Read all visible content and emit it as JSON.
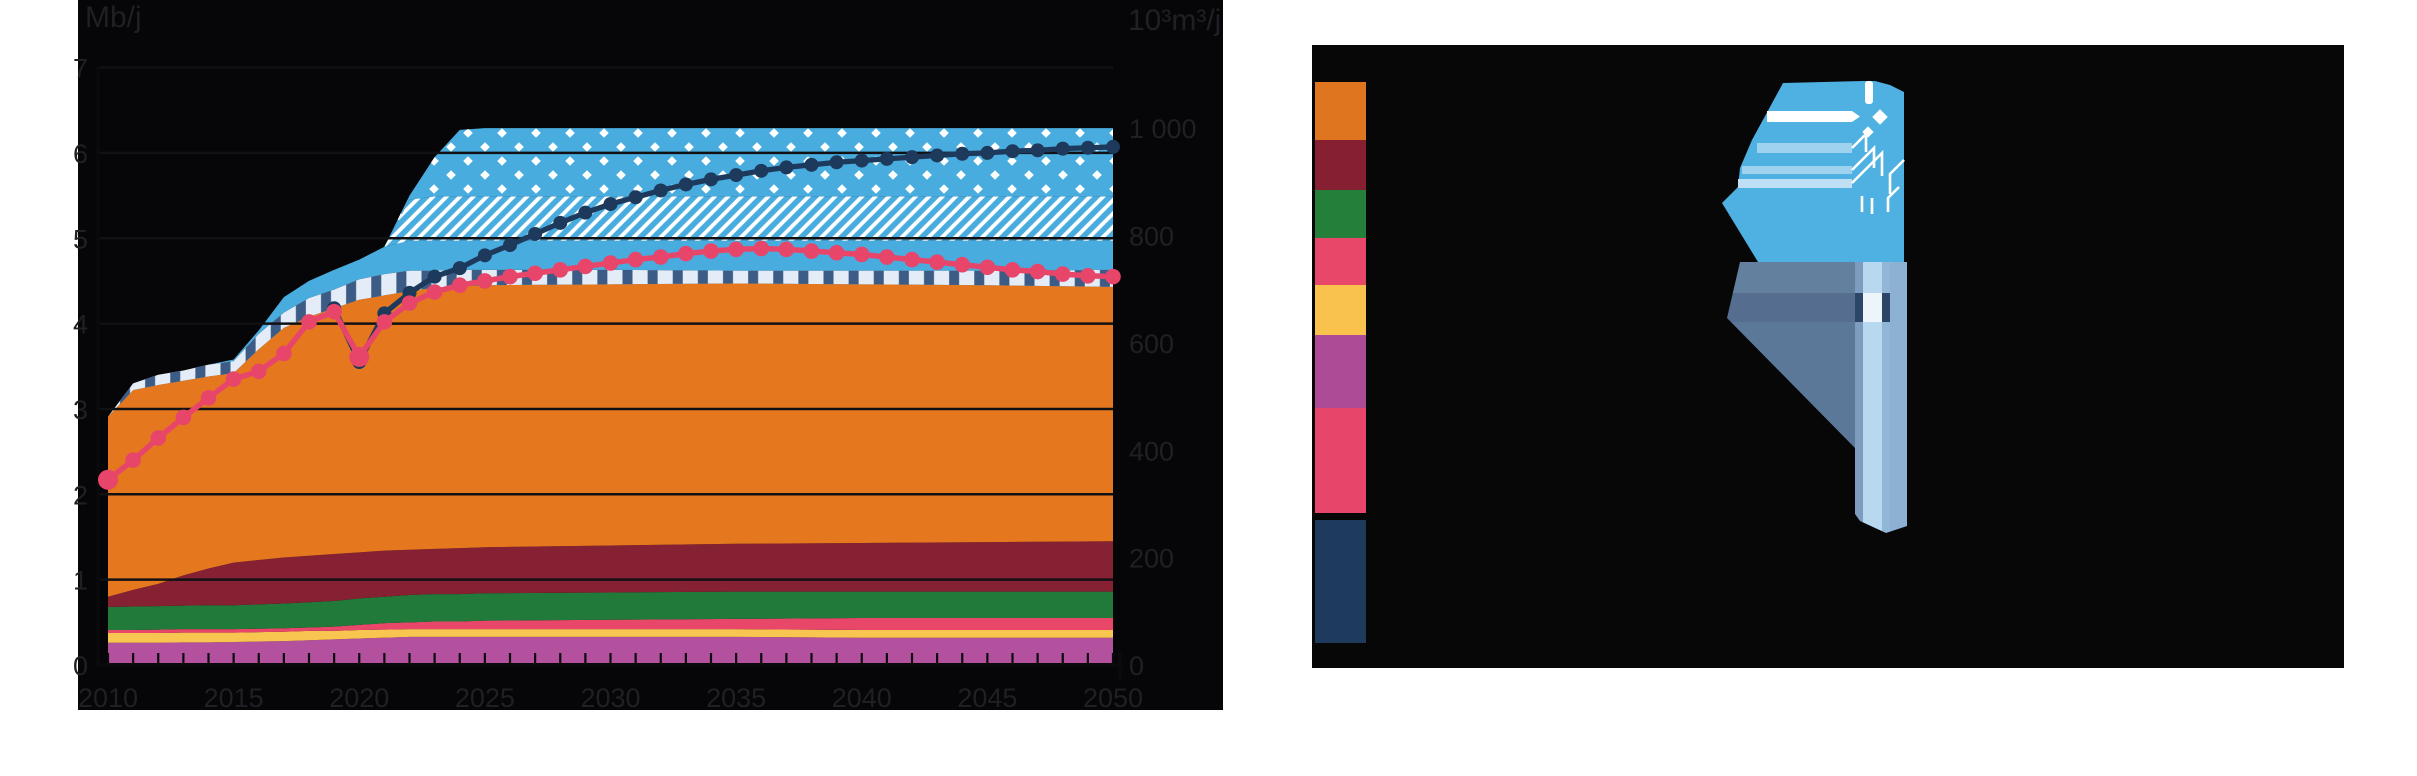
{
  "page": {
    "background": "#ffffff"
  },
  "left_chart": {
    "axis_left_title": "Mb/j",
    "axis_right_title": "10³m³/j",
    "left_tick_labels": [
      "0",
      "1",
      "2",
      "3",
      "4",
      "5",
      "6",
      "7"
    ],
    "right_ticks": [
      {
        "label": "1 000",
        "value": 1000
      },
      {
        "label": "800",
        "value": 800
      },
      {
        "label": "600",
        "value": 600
      },
      {
        "label": "400",
        "value": 400
      },
      {
        "label": "200",
        "value": 200
      },
      {
        "label": "0",
        "value": 0
      }
    ],
    "year_labels": [
      "2010",
      "2015",
      "2020",
      "2025",
      "2030",
      "2035",
      "2040",
      "2045",
      "2050"
    ]
  },
  "chart_data": {
    "type": "area",
    "title": "",
    "xlabel": "",
    "ylabel_left": "Mb/j",
    "ylabel_right": "10³m³/j",
    "x_range": [
      2010,
      2050
    ],
    "ylim_left": [
      0,
      7
    ],
    "ylim_right": [
      0,
      1113
    ],
    "grid": true,
    "checkpoint_years": [
      2010,
      2011,
      2012,
      2013,
      2014,
      2015,
      2016,
      2017,
      2018,
      2019,
      2020,
      2021,
      2022,
      2023,
      2024,
      2025,
      2030,
      2035,
      2040,
      2045,
      2050
    ],
    "stacked_series": [
      {
        "name": "band-magenta",
        "color_key": "magenta",
        "pattern": null,
        "top": [
          0.26,
          0.26,
          0.26,
          0.265,
          0.265,
          0.27,
          0.275,
          0.28,
          0.29,
          0.3,
          0.31,
          0.32,
          0.33,
          0.33,
          0.33,
          0.33,
          0.33,
          0.33,
          0.32,
          0.32,
          0.32
        ]
      },
      {
        "name": "band-yellow",
        "color_key": "yellow",
        "pattern": null,
        "top": [
          0.375,
          0.375,
          0.375,
          0.38,
          0.38,
          0.38,
          0.385,
          0.39,
          0.4,
          0.4,
          0.41,
          0.415,
          0.42,
          0.42,
          0.42,
          0.42,
          0.42,
          0.42,
          0.41,
          0.41,
          0.41
        ]
      },
      {
        "name": "band-pink",
        "color_key": "pink_band",
        "pattern": null,
        "top": [
          0.41,
          0.41,
          0.415,
          0.42,
          0.42,
          0.42,
          0.425,
          0.43,
          0.44,
          0.45,
          0.47,
          0.49,
          0.5,
          0.51,
          0.51,
          0.52,
          0.53,
          0.54,
          0.55,
          0.55,
          0.55
        ]
      },
      {
        "name": "band-green",
        "color_key": "green",
        "pattern": null,
        "top": [
          0.68,
          0.685,
          0.69,
          0.695,
          0.7,
          0.7,
          0.71,
          0.72,
          0.735,
          0.75,
          0.78,
          0.8,
          0.82,
          0.83,
          0.83,
          0.84,
          0.85,
          0.86,
          0.86,
          0.86,
          0.86
        ]
      },
      {
        "name": "band-maroon",
        "color_key": "maroon",
        "pattern": null,
        "top": [
          0.8,
          0.88,
          0.95,
          1.05,
          1.13,
          1.2,
          1.23,
          1.26,
          1.28,
          1.3,
          1.32,
          1.34,
          1.35,
          1.36,
          1.37,
          1.38,
          1.4,
          1.42,
          1.43,
          1.44,
          1.45
        ]
      },
      {
        "name": "band-orange",
        "color_key": "orange",
        "pattern": null,
        "top": [
          2.91,
          3.22,
          3.28,
          3.33,
          3.38,
          3.42,
          3.7,
          3.95,
          4.08,
          4.18,
          4.28,
          4.33,
          4.38,
          4.42,
          4.44,
          4.45,
          4.46,
          4.47,
          4.46,
          4.45,
          4.43
        ]
      },
      {
        "name": "band-striped",
        "color_key": "stripe_bg",
        "pattern": "stripes",
        "top": [
          2.91,
          3.3,
          3.4,
          3.45,
          3.52,
          3.56,
          3.88,
          4.13,
          4.3,
          4.4,
          4.52,
          4.58,
          4.62,
          4.62,
          4.63,
          4.63,
          4.63,
          4.62,
          4.62,
          4.62,
          4.63
        ]
      },
      {
        "name": "band-blue-solid",
        "color_key": "blue",
        "pattern": null,
        "top": [
          2.91,
          3.3,
          3.4,
          3.45,
          3.52,
          3.58,
          3.92,
          4.31,
          4.5,
          4.63,
          4.75,
          4.9,
          4.97,
          4.97,
          4.97,
          4.97,
          4.97,
          4.97,
          4.97,
          4.97,
          4.97
        ]
      },
      {
        "name": "band-blue-hatched",
        "color_key": "blue",
        "pattern": "hatch",
        "top": [
          2.91,
          3.3,
          3.4,
          3.45,
          3.52,
          3.58,
          3.92,
          4.31,
          4.5,
          4.63,
          4.75,
          4.9,
          5.45,
          5.49,
          5.49,
          5.49,
          5.49,
          5.49,
          5.49,
          5.49,
          5.49
        ]
      },
      {
        "name": "band-blue-dotted",
        "color_key": "blue",
        "pattern": "dots",
        "top": [
          2.91,
          3.3,
          3.4,
          3.45,
          3.52,
          3.58,
          3.92,
          4.31,
          4.5,
          4.63,
          4.75,
          4.9,
          5.5,
          5.95,
          6.27,
          6.29,
          6.29,
          6.29,
          6.29,
          6.29,
          6.29
        ]
      }
    ],
    "lines": [
      {
        "name": "supply-line",
        "color_key": "navy_line",
        "start_year": 2019,
        "values": [
          4.18,
          3.55,
          4.12,
          4.36,
          4.55,
          4.65,
          4.8,
          4.92,
          5.05,
          5.18,
          5.3,
          5.4,
          5.48,
          5.56,
          5.63,
          5.69,
          5.74,
          5.79,
          5.83,
          5.86,
          5.89,
          5.91,
          5.93,
          5.95,
          5.97,
          5.99,
          6.0,
          6.02,
          6.03,
          6.05,
          6.06,
          6.07
        ]
      },
      {
        "name": "demand-line",
        "color_key": "pink_line",
        "start_year": 2010,
        "values": [
          2.17,
          2.4,
          2.66,
          2.9,
          3.13,
          3.35,
          3.44,
          3.65,
          4.02,
          4.14,
          3.61,
          4.02,
          4.24,
          4.37,
          4.45,
          4.5,
          4.55,
          4.59,
          4.63,
          4.67,
          4.71,
          4.75,
          4.78,
          4.82,
          4.85,
          4.87,
          4.88,
          4.87,
          4.85,
          4.83,
          4.81,
          4.78,
          4.75,
          4.72,
          4.69,
          4.66,
          4.63,
          4.61,
          4.58,
          4.56,
          4.55
        ]
      }
    ]
  },
  "colors": {
    "chart_bg": "#060608",
    "axis_text": "#202024",
    "gridline": "#111114",
    "axis_line": "#0a0a0c",
    "magenta": "#b3519e",
    "yellow": "#f9c551",
    "pink_band": "#e8476a",
    "green": "#227a3a",
    "maroon": "#862033",
    "orange": "#e5781f",
    "stripe_bg": "#e4edf7",
    "stripe_fg": "#3c5c85",
    "blue": "#49acdf",
    "pattern_white": "#ffffff",
    "navy_line": "#1d3a5c",
    "pink_line": "#e8456b"
  },
  "right_panel": {
    "background": "#070708",
    "legend_chips": [
      {
        "name": "legend-chip-orange",
        "color": "#e0751f"
      },
      {
        "name": "legend-chip-maroon",
        "color": "#871f33"
      },
      {
        "name": "legend-chip-green",
        "color": "#237f39"
      },
      {
        "name": "legend-chip-pink",
        "color": "#e8476a"
      },
      {
        "name": "legend-chip-yellow",
        "color": "#f9c24c"
      },
      {
        "name": "legend-chip-purple",
        "color": "#ad4b96"
      },
      {
        "name": "legend-marker-demand",
        "color": "#e8456b"
      },
      {
        "name": "legend-marker-supply",
        "color": "#1e3a5c"
      }
    ],
    "illustration": {
      "flag_blue": "#4fb0e2",
      "stripe_pale": "#9fd2ee",
      "stripe_pale2": "#bfe0f4",
      "trace_white": "#ffffff",
      "wedge_light": "#64809f",
      "wedge_dark": "#556e90",
      "wedge_main": "#5c7899",
      "pole_edge": "#7c9cc0",
      "pole_light": "#b7d8ef",
      "pole_mid": "#92b6d5",
      "pole_right": "#8db1d3",
      "notch_navy": "#2c4668",
      "notch_white": "#edf5fb"
    }
  }
}
